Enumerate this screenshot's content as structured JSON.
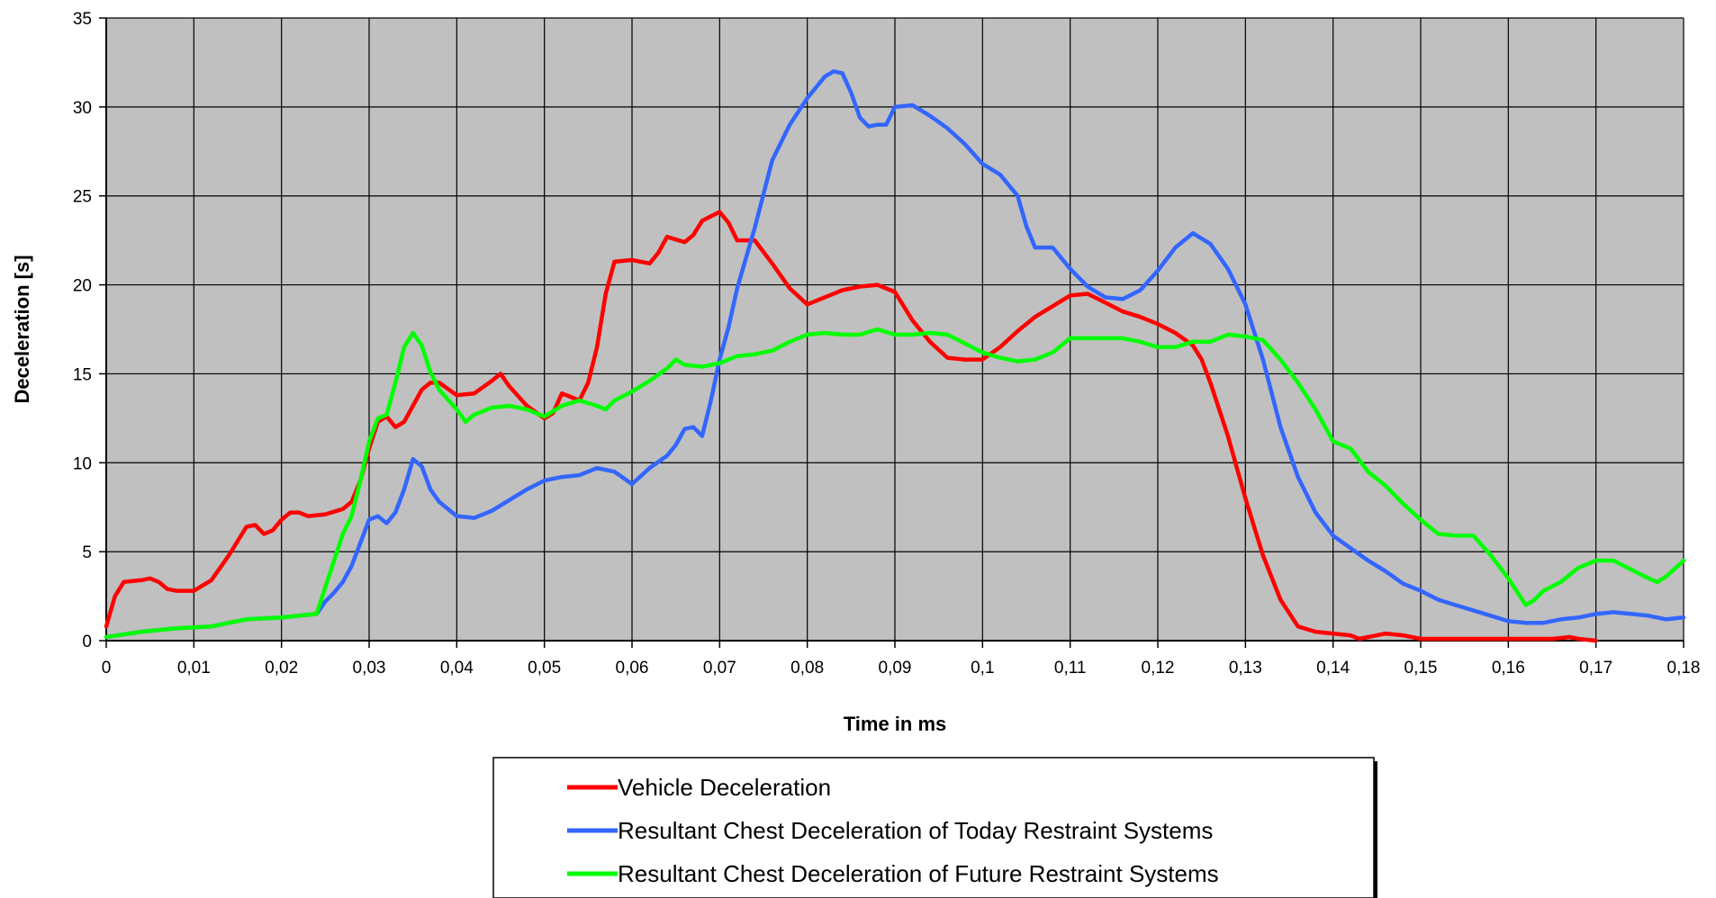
{
  "chart_data": {
    "type": "line",
    "title": "",
    "xlabel": "Time in ms",
    "ylabel": "Deceleration [s]",
    "xlim": [
      0,
      0.18
    ],
    "ylim": [
      0,
      35
    ],
    "x_ticks": [
      "0",
      "0,01",
      "0,02",
      "0,03",
      "0,04",
      "0,05",
      "0,06",
      "0,07",
      "0,08",
      "0,09",
      "0,1",
      "0,11",
      "0,12",
      "0,13",
      "0,14",
      "0,15",
      "0,16",
      "0,17",
      "0,18"
    ],
    "y_ticks": [
      "0",
      "5",
      "10",
      "15",
      "20",
      "25",
      "30",
      "35"
    ],
    "grid": true,
    "plot_background": "#c0c0c0",
    "legend_position": "bottom",
    "series": [
      {
        "name": "Vehicle Deceleration",
        "color": "#ff0000",
        "points": [
          [
            0,
            0.8
          ],
          [
            0.001,
            2.5
          ],
          [
            0.002,
            3.3
          ],
          [
            0.004,
            3.4
          ],
          [
            0.005,
            3.5
          ],
          [
            0.006,
            3.3
          ],
          [
            0.007,
            2.9
          ],
          [
            0.008,
            2.8
          ],
          [
            0.01,
            2.8
          ],
          [
            0.012,
            3.4
          ],
          [
            0.014,
            4.8
          ],
          [
            0.016,
            6.4
          ],
          [
            0.017,
            6.5
          ],
          [
            0.018,
            6.0
          ],
          [
            0.019,
            6.2
          ],
          [
            0.02,
            6.8
          ],
          [
            0.021,
            7.2
          ],
          [
            0.022,
            7.2
          ],
          [
            0.023,
            7.0
          ],
          [
            0.025,
            7.1
          ],
          [
            0.027,
            7.4
          ],
          [
            0.028,
            7.8
          ],
          [
            0.029,
            9.0
          ],
          [
            0.03,
            10.8
          ],
          [
            0.031,
            12.3
          ],
          [
            0.032,
            12.6
          ],
          [
            0.033,
            12.0
          ],
          [
            0.034,
            12.3
          ],
          [
            0.035,
            13.2
          ],
          [
            0.036,
            14.1
          ],
          [
            0.037,
            14.5
          ],
          [
            0.038,
            14.5
          ],
          [
            0.04,
            13.8
          ],
          [
            0.042,
            13.9
          ],
          [
            0.044,
            14.6
          ],
          [
            0.045,
            15.0
          ],
          [
            0.046,
            14.3
          ],
          [
            0.048,
            13.2
          ],
          [
            0.05,
            12.5
          ],
          [
            0.051,
            12.8
          ],
          [
            0.052,
            13.9
          ],
          [
            0.053,
            13.7
          ],
          [
            0.054,
            13.5
          ],
          [
            0.055,
            14.5
          ],
          [
            0.056,
            16.5
          ],
          [
            0.057,
            19.5
          ],
          [
            0.058,
            21.3
          ],
          [
            0.06,
            21.4
          ],
          [
            0.062,
            21.2
          ],
          [
            0.063,
            21.8
          ],
          [
            0.064,
            22.7
          ],
          [
            0.066,
            22.4
          ],
          [
            0.067,
            22.8
          ],
          [
            0.068,
            23.6
          ],
          [
            0.07,
            24.1
          ],
          [
            0.071,
            23.5
          ],
          [
            0.072,
            22.5
          ],
          [
            0.074,
            22.5
          ],
          [
            0.076,
            21.2
          ],
          [
            0.078,
            19.8
          ],
          [
            0.08,
            18.9
          ],
          [
            0.082,
            19.3
          ],
          [
            0.084,
            19.7
          ],
          [
            0.086,
            19.9
          ],
          [
            0.088,
            20.0
          ],
          [
            0.09,
            19.6
          ],
          [
            0.092,
            18.0
          ],
          [
            0.094,
            16.8
          ],
          [
            0.096,
            15.9
          ],
          [
            0.098,
            15.8
          ],
          [
            0.1,
            15.8
          ],
          [
            0.102,
            16.5
          ],
          [
            0.104,
            17.4
          ],
          [
            0.106,
            18.2
          ],
          [
            0.108,
            18.8
          ],
          [
            0.11,
            19.4
          ],
          [
            0.112,
            19.5
          ],
          [
            0.114,
            19.0
          ],
          [
            0.116,
            18.5
          ],
          [
            0.118,
            18.2
          ],
          [
            0.12,
            17.8
          ],
          [
            0.122,
            17.3
          ],
          [
            0.124,
            16.6
          ],
          [
            0.125,
            15.8
          ],
          [
            0.126,
            14.5
          ],
          [
            0.128,
            11.5
          ],
          [
            0.13,
            8.0
          ],
          [
            0.132,
            4.8
          ],
          [
            0.134,
            2.3
          ],
          [
            0.136,
            0.8
          ],
          [
            0.138,
            0.5
          ],
          [
            0.14,
            0.4
          ],
          [
            0.142,
            0.3
          ],
          [
            0.143,
            0.1
          ],
          [
            0.144,
            0.2
          ],
          [
            0.146,
            0.4
          ],
          [
            0.148,
            0.3
          ],
          [
            0.15,
            0.1
          ],
          [
            0.155,
            0.1
          ],
          [
            0.16,
            0.1
          ],
          [
            0.165,
            0.1
          ],
          [
            0.167,
            0.2
          ],
          [
            0.168,
            0.1
          ],
          [
            0.17,
            0.0
          ]
        ]
      },
      {
        "name": "Resultant Chest Deceleration of Today Restraint Systems",
        "color": "#3366ff",
        "points": [
          [
            0,
            0.2
          ],
          [
            0.004,
            0.5
          ],
          [
            0.008,
            0.7
          ],
          [
            0.012,
            0.8
          ],
          [
            0.016,
            1.2
          ],
          [
            0.02,
            1.3
          ],
          [
            0.024,
            1.5
          ],
          [
            0.025,
            2.2
          ],
          [
            0.026,
            2.7
          ],
          [
            0.027,
            3.3
          ],
          [
            0.028,
            4.2
          ],
          [
            0.029,
            5.5
          ],
          [
            0.03,
            6.8
          ],
          [
            0.031,
            7.0
          ],
          [
            0.032,
            6.6
          ],
          [
            0.033,
            7.2
          ],
          [
            0.034,
            8.5
          ],
          [
            0.035,
            10.2
          ],
          [
            0.036,
            9.8
          ],
          [
            0.037,
            8.5
          ],
          [
            0.038,
            7.8
          ],
          [
            0.04,
            7.0
          ],
          [
            0.042,
            6.9
          ],
          [
            0.044,
            7.3
          ],
          [
            0.046,
            7.9
          ],
          [
            0.048,
            8.5
          ],
          [
            0.05,
            9.0
          ],
          [
            0.052,
            9.2
          ],
          [
            0.054,
            9.3
          ],
          [
            0.056,
            9.7
          ],
          [
            0.058,
            9.5
          ],
          [
            0.06,
            8.8
          ],
          [
            0.062,
            9.7
          ],
          [
            0.064,
            10.4
          ],
          [
            0.065,
            11.0
          ],
          [
            0.066,
            11.9
          ],
          [
            0.067,
            12.0
          ],
          [
            0.068,
            11.5
          ],
          [
            0.069,
            13.5
          ],
          [
            0.07,
            15.8
          ],
          [
            0.071,
            17.6
          ],
          [
            0.072,
            19.8
          ],
          [
            0.074,
            23.2
          ],
          [
            0.076,
            27.0
          ],
          [
            0.078,
            29.0
          ],
          [
            0.08,
            30.5
          ],
          [
            0.082,
            31.7
          ],
          [
            0.083,
            32.0
          ],
          [
            0.084,
            31.9
          ],
          [
            0.085,
            30.8
          ],
          [
            0.086,
            29.4
          ],
          [
            0.087,
            28.9
          ],
          [
            0.088,
            29.0
          ],
          [
            0.089,
            29.0
          ],
          [
            0.09,
            30.0
          ],
          [
            0.092,
            30.1
          ],
          [
            0.094,
            29.5
          ],
          [
            0.096,
            28.8
          ],
          [
            0.098,
            27.9
          ],
          [
            0.1,
            26.8
          ],
          [
            0.102,
            26.2
          ],
          [
            0.104,
            25.0
          ],
          [
            0.105,
            23.3
          ],
          [
            0.106,
            22.1
          ],
          [
            0.108,
            22.1
          ],
          [
            0.11,
            20.9
          ],
          [
            0.112,
            19.9
          ],
          [
            0.114,
            19.3
          ],
          [
            0.116,
            19.2
          ],
          [
            0.118,
            19.7
          ],
          [
            0.12,
            20.8
          ],
          [
            0.122,
            22.1
          ],
          [
            0.124,
            22.9
          ],
          [
            0.126,
            22.3
          ],
          [
            0.128,
            20.9
          ],
          [
            0.13,
            18.9
          ],
          [
            0.132,
            15.8
          ],
          [
            0.134,
            12.0
          ],
          [
            0.136,
            9.2
          ],
          [
            0.138,
            7.2
          ],
          [
            0.14,
            5.9
          ],
          [
            0.142,
            5.2
          ],
          [
            0.144,
            4.5
          ],
          [
            0.146,
            3.9
          ],
          [
            0.148,
            3.2
          ],
          [
            0.15,
            2.8
          ],
          [
            0.152,
            2.3
          ],
          [
            0.154,
            2.0
          ],
          [
            0.156,
            1.7
          ],
          [
            0.158,
            1.4
          ],
          [
            0.16,
            1.1
          ],
          [
            0.162,
            1.0
          ],
          [
            0.164,
            1.0
          ],
          [
            0.166,
            1.2
          ],
          [
            0.168,
            1.3
          ],
          [
            0.17,
            1.5
          ],
          [
            0.172,
            1.6
          ],
          [
            0.174,
            1.5
          ],
          [
            0.176,
            1.4
          ],
          [
            0.178,
            1.2
          ],
          [
            0.18,
            1.3
          ]
        ]
      },
      {
        "name": "Resultant Chest Deceleration of Future Restraint Systems",
        "color": "#00ff00",
        "points": [
          [
            0,
            0.2
          ],
          [
            0.004,
            0.5
          ],
          [
            0.008,
            0.7
          ],
          [
            0.012,
            0.8
          ],
          [
            0.016,
            1.2
          ],
          [
            0.02,
            1.3
          ],
          [
            0.024,
            1.5
          ],
          [
            0.025,
            3.0
          ],
          [
            0.026,
            4.5
          ],
          [
            0.027,
            6.0
          ],
          [
            0.028,
            7.0
          ],
          [
            0.029,
            9.0
          ],
          [
            0.03,
            11.2
          ],
          [
            0.031,
            12.5
          ],
          [
            0.032,
            12.7
          ],
          [
            0.033,
            14.5
          ],
          [
            0.034,
            16.5
          ],
          [
            0.035,
            17.3
          ],
          [
            0.036,
            16.6
          ],
          [
            0.037,
            15.1
          ],
          [
            0.038,
            14.1
          ],
          [
            0.04,
            13.0
          ],
          [
            0.041,
            12.3
          ],
          [
            0.042,
            12.7
          ],
          [
            0.044,
            13.1
          ],
          [
            0.046,
            13.2
          ],
          [
            0.048,
            13.0
          ],
          [
            0.05,
            12.6
          ],
          [
            0.052,
            13.2
          ],
          [
            0.054,
            13.5
          ],
          [
            0.056,
            13.2
          ],
          [
            0.057,
            13.0
          ],
          [
            0.058,
            13.5
          ],
          [
            0.06,
            14.0
          ],
          [
            0.062,
            14.6
          ],
          [
            0.064,
            15.3
          ],
          [
            0.065,
            15.8
          ],
          [
            0.066,
            15.5
          ],
          [
            0.068,
            15.4
          ],
          [
            0.07,
            15.6
          ],
          [
            0.072,
            16.0
          ],
          [
            0.074,
            16.1
          ],
          [
            0.076,
            16.3
          ],
          [
            0.078,
            16.8
          ],
          [
            0.08,
            17.2
          ],
          [
            0.082,
            17.3
          ],
          [
            0.084,
            17.2
          ],
          [
            0.086,
            17.2
          ],
          [
            0.088,
            17.5
          ],
          [
            0.09,
            17.2
          ],
          [
            0.092,
            17.2
          ],
          [
            0.094,
            17.3
          ],
          [
            0.096,
            17.2
          ],
          [
            0.098,
            16.7
          ],
          [
            0.1,
            16.2
          ],
          [
            0.102,
            15.9
          ],
          [
            0.104,
            15.7
          ],
          [
            0.106,
            15.8
          ],
          [
            0.108,
            16.2
          ],
          [
            0.11,
            17.0
          ],
          [
            0.112,
            17.0
          ],
          [
            0.114,
            17.0
          ],
          [
            0.116,
            17.0
          ],
          [
            0.118,
            16.8
          ],
          [
            0.12,
            16.5
          ],
          [
            0.122,
            16.5
          ],
          [
            0.124,
            16.8
          ],
          [
            0.126,
            16.8
          ],
          [
            0.128,
            17.2
          ],
          [
            0.13,
            17.1
          ],
          [
            0.132,
            16.9
          ],
          [
            0.134,
            15.8
          ],
          [
            0.136,
            14.5
          ],
          [
            0.138,
            13.0
          ],
          [
            0.14,
            11.2
          ],
          [
            0.142,
            10.8
          ],
          [
            0.144,
            9.5
          ],
          [
            0.146,
            8.7
          ],
          [
            0.148,
            7.7
          ],
          [
            0.15,
            6.8
          ],
          [
            0.152,
            6.0
          ],
          [
            0.154,
            5.9
          ],
          [
            0.156,
            5.9
          ],
          [
            0.158,
            4.8
          ],
          [
            0.16,
            3.5
          ],
          [
            0.162,
            2.0
          ],
          [
            0.163,
            2.3
          ],
          [
            0.164,
            2.8
          ],
          [
            0.166,
            3.3
          ],
          [
            0.168,
            4.1
          ],
          [
            0.17,
            4.5
          ],
          [
            0.172,
            4.5
          ],
          [
            0.174,
            4.0
          ],
          [
            0.176,
            3.5
          ],
          [
            0.177,
            3.3
          ],
          [
            0.178,
            3.6
          ],
          [
            0.18,
            4.5
          ]
        ]
      }
    ]
  }
}
